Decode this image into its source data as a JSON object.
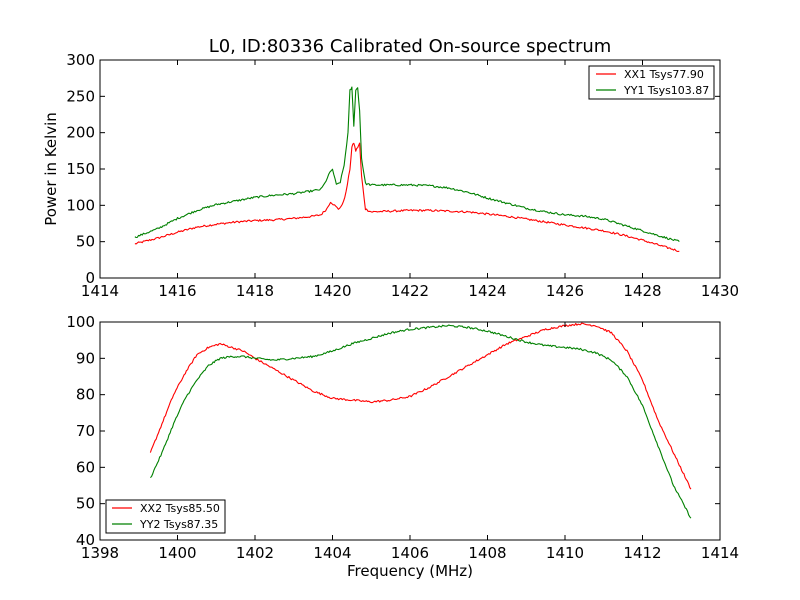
{
  "figure": {
    "title": "L0, ID:80336 Calibrated On-source spectrum"
  },
  "chart_data": [
    {
      "type": "line",
      "title": "L0, ID:80336 Calibrated On-source spectrum",
      "xlabel": "",
      "ylabel": "Power in Kelvin",
      "xlim": [
        1414,
        1430
      ],
      "ylim": [
        0,
        300
      ],
      "xticks": [
        1414,
        1416,
        1418,
        1420,
        1422,
        1424,
        1426,
        1428,
        1430
      ],
      "yticks": [
        0,
        50,
        100,
        150,
        200,
        250,
        300
      ],
      "grid": false,
      "legend_position": "top-right",
      "series": [
        {
          "name": "XX1 Tsys77.90",
          "color": "#ff0000",
          "x": [
            1414.9,
            1415.5,
            1416.0,
            1416.5,
            1417.0,
            1417.5,
            1418.0,
            1418.5,
            1419.0,
            1419.5,
            1419.7,
            1419.85,
            1419.95,
            1420.05,
            1420.15,
            1420.25,
            1420.35,
            1420.45,
            1420.5,
            1420.55,
            1420.6,
            1420.65,
            1420.7,
            1420.75,
            1420.85,
            1421.0,
            1421.5,
            1422.0,
            1422.5,
            1423.0,
            1423.5,
            1424.0,
            1424.5,
            1425.0,
            1425.5,
            1426.0,
            1426.5,
            1427.0,
            1427.5,
            1428.0,
            1428.5,
            1428.95
          ],
          "values": [
            47,
            55,
            63,
            70,
            74,
            77,
            79,
            80,
            82,
            85,
            87,
            95,
            105,
            100,
            95,
            100,
            118,
            150,
            180,
            186,
            175,
            180,
            185,
            140,
            95,
            91,
            92,
            93,
            93,
            92,
            91,
            88,
            85,
            81,
            77,
            73,
            69,
            65,
            59,
            52,
            44,
            37
          ]
        },
        {
          "name": "YY1 Tsys103.87",
          "color": "#008000",
          "x": [
            1414.9,
            1415.5,
            1416.0,
            1416.5,
            1417.0,
            1417.5,
            1418.0,
            1418.5,
            1419.0,
            1419.5,
            1419.7,
            1419.8,
            1419.9,
            1420.0,
            1420.1,
            1420.2,
            1420.3,
            1420.4,
            1420.45,
            1420.5,
            1420.55,
            1420.6,
            1420.65,
            1420.7,
            1420.75,
            1420.85,
            1421.0,
            1421.5,
            1422.0,
            1422.5,
            1423.0,
            1423.5,
            1424.0,
            1424.5,
            1425.0,
            1425.5,
            1426.0,
            1426.5,
            1427.0,
            1427.5,
            1428.0,
            1428.5,
            1428.95
          ],
          "values": [
            56,
            68,
            82,
            93,
            101,
            106,
            111,
            114,
            116,
            120,
            122,
            130,
            142,
            150,
            128,
            132,
            155,
            200,
            258,
            262,
            210,
            258,
            262,
            230,
            165,
            130,
            128,
            128,
            128,
            127,
            124,
            118,
            110,
            103,
            96,
            91,
            87,
            85,
            81,
            73,
            65,
            57,
            50
          ]
        }
      ]
    },
    {
      "type": "line",
      "title": "",
      "xlabel": "Frequency (MHz)",
      "ylabel": "",
      "xlim": [
        1398,
        1414
      ],
      "ylim": [
        40,
        100
      ],
      "xticks": [
        1398,
        1400,
        1402,
        1404,
        1406,
        1408,
        1410,
        1412,
        1414
      ],
      "yticks": [
        40,
        50,
        60,
        70,
        80,
        90,
        100
      ],
      "grid": false,
      "legend_position": "bottom-left",
      "series": [
        {
          "name": "XX2 Tsys85.50",
          "color": "#ff0000",
          "x": [
            1399.3,
            1399.6,
            1399.9,
            1400.2,
            1400.5,
            1400.8,
            1401.1,
            1401.4,
            1401.7,
            1402.0,
            1402.5,
            1403.0,
            1403.5,
            1404.0,
            1404.5,
            1405.0,
            1405.5,
            1406.0,
            1406.5,
            1407.0,
            1407.5,
            1408.0,
            1408.5,
            1409.0,
            1409.5,
            1410.0,
            1410.4,
            1410.8,
            1411.2,
            1411.6,
            1412.0,
            1412.4,
            1412.8,
            1413.25
          ],
          "values": [
            64,
            72,
            80,
            86,
            91,
            93,
            94,
            93,
            92,
            90,
            87,
            84,
            81,
            79,
            78.5,
            78,
            78.5,
            79.5,
            82,
            85,
            88,
            91,
            94,
            96,
            98,
            99,
            99.5,
            99,
            97,
            92,
            84,
            73,
            64,
            54
          ]
        },
        {
          "name": "YY2 Tsys87.35",
          "color": "#008000",
          "x": [
            1399.3,
            1399.6,
            1399.9,
            1400.2,
            1400.5,
            1400.8,
            1401.1,
            1401.4,
            1401.7,
            1402.0,
            1402.5,
            1403.0,
            1403.5,
            1404.0,
            1404.5,
            1405.0,
            1405.5,
            1406.0,
            1406.5,
            1407.0,
            1407.5,
            1408.0,
            1408.5,
            1409.0,
            1409.5,
            1410.0,
            1410.4,
            1410.8,
            1411.2,
            1411.6,
            1412.0,
            1412.4,
            1412.8,
            1413.25
          ],
          "values": [
            57,
            64,
            72,
            79,
            84,
            88,
            90,
            90.5,
            90.5,
            90,
            89.5,
            90,
            90.5,
            92,
            94,
            95.5,
            97,
            98,
            98.5,
            99,
            98.5,
            97.5,
            96,
            94.5,
            93.5,
            93,
            92.5,
            91.5,
            89.5,
            85,
            77,
            66,
            55,
            46
          ]
        }
      ]
    }
  ]
}
